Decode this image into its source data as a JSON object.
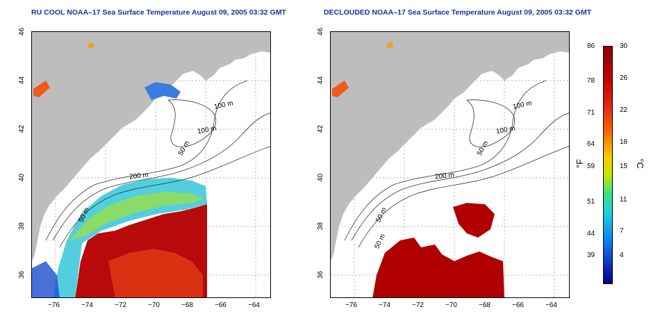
{
  "left_panel": {
    "title": "RU COOL NOAA–17 Sea Surface Temperature August 09, 2005 03:32 GMT",
    "contours": {
      "c100a": "100 m",
      "c100b": "100 m",
      "c50a": "50 m",
      "c200": "200 m",
      "c50b": "50 m"
    }
  },
  "right_panel": {
    "title": "DECLOUDED NOAA–17 Sea Surface Temperature August 09, 2005 03:32 GMT",
    "contours": {
      "c100a": "100 m",
      "c100b": "100 m",
      "c50a": "50 m",
      "c200": "200 m",
      "c50b": "50 m",
      "c50c": "50 m"
    }
  },
  "axes": {
    "x_ticks": [
      "−76",
      "−74",
      "−72",
      "−70",
      "−68",
      "−66",
      "−64"
    ],
    "y_ticks": [
      "46",
      "44",
      "42",
      "40",
      "38",
      "36"
    ]
  },
  "colorbar": {
    "fahrenheit_unit": "°F",
    "celsius_unit": "°C",
    "fahrenheit_labels": [
      "86",
      "78",
      "71",
      "64",
      "59",
      "51",
      "44",
      "39"
    ],
    "celsius_labels": [
      "30",
      "26",
      "22",
      "18",
      "15",
      "11",
      "7",
      "4"
    ]
  },
  "colors": {
    "land": "#bdbdbd",
    "water": "#ffffff",
    "title": "#1c2fa6",
    "warm": "#b00000",
    "hot": "#d42a10"
  }
}
